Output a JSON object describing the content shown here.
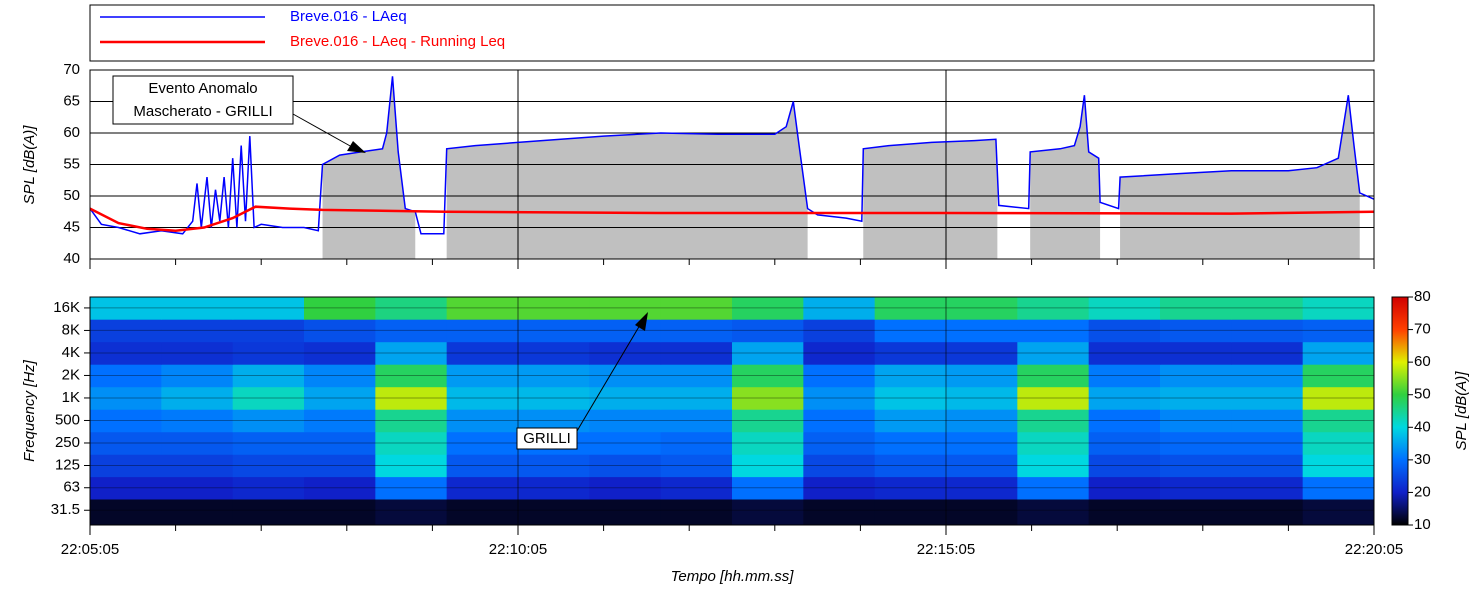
{
  "chart_data": [
    {
      "type": "line",
      "ylabel": "SPL [dB(A)]",
      "xlim": [
        0,
        900
      ],
      "xticks": [
        0,
        300,
        600,
        900
      ],
      "ylim": [
        40,
        70
      ],
      "yticks": [
        40,
        45,
        50,
        55,
        60,
        65,
        70
      ],
      "grid": true,
      "mask_color": "#c0c0c0",
      "masked_intervals": [
        [
          163,
          228
        ],
        [
          250,
          503
        ],
        [
          542,
          636
        ],
        [
          659,
          708
        ],
        [
          722,
          890
        ]
      ],
      "series": [
        {
          "name": "Breve.016 - LAeq",
          "color": "#0000ff",
          "x": [
            0,
            8,
            20,
            35,
            50,
            65,
            72,
            75,
            78,
            82,
            85,
            88,
            91,
            94,
            97,
            100,
            103,
            106,
            109,
            112,
            115,
            120,
            135,
            150,
            160,
            163,
            175,
            190,
            205,
            208,
            212,
            216,
            221,
            228,
            232,
            248,
            250,
            270,
            300,
            330,
            360,
            400,
            440,
            480,
            488,
            493,
            497,
            503,
            510,
            530,
            541,
            542,
            560,
            590,
            620,
            635,
            637,
            658,
            659,
            680,
            690,
            694,
            697,
            700,
            707,
            708,
            721,
            722,
            760,
            800,
            840,
            860,
            875,
            882,
            886,
            890,
            900
          ],
          "values": [
            48,
            45.5,
            45,
            44,
            44.5,
            44,
            46,
            52,
            45,
            53,
            45,
            51,
            46,
            53,
            45,
            56,
            45,
            58,
            46,
            59.5,
            45,
            45.5,
            45,
            45,
            44.5,
            55,
            56.5,
            57,
            57.5,
            60,
            69,
            57,
            48,
            47.5,
            44,
            44,
            57.5,
            58,
            58.5,
            59,
            59.5,
            60,
            59.8,
            59.8,
            61,
            65,
            58,
            48,
            47,
            46.5,
            46,
            57.5,
            58,
            58.5,
            58.8,
            59,
            48.5,
            48,
            57,
            57.5,
            58,
            61,
            66,
            57,
            56,
            49,
            48,
            53,
            53.5,
            54,
            54,
            54.5,
            56,
            66,
            58,
            50.5,
            49.5
          ]
        },
        {
          "name": "Breve.016 - LAeq - Running Leq",
          "color": "#ff0000",
          "x": [
            0,
            20,
            40,
            60,
            80,
            100,
            116,
            140,
            163,
            250,
            400,
            600,
            800,
            900
          ],
          "values": [
            48,
            45.7,
            44.8,
            44.5,
            45,
            46.5,
            48.3,
            48,
            47.8,
            47.5,
            47.3,
            47.3,
            47.2,
            47.5
          ]
        }
      ],
      "annotations": [
        {
          "text": [
            "Evento Anomalo",
            "Mascherato - GRILLI"
          ]
        }
      ]
    },
    {
      "type": "heatmap",
      "ylabel": "Frequency [Hz]",
      "xlabel": "Tempo [hh.mm.ss]",
      "clabel": "SPL [dB(A)]",
      "xlim": [
        0,
        900
      ],
      "xticks": [
        {
          "value": 0,
          "label": "22:05:05"
        },
        {
          "value": 300,
          "label": "22:10:05"
        },
        {
          "value": 600,
          "label": "22:15:05"
        },
        {
          "value": 900,
          "label": "22:20:05"
        }
      ],
      "xminorticks": [
        60,
        120,
        180,
        240,
        360,
        420,
        480,
        540,
        660,
        720,
        780,
        840
      ],
      "ylim": [
        20,
        22400
      ],
      "log_y": true,
      "yticks": [
        {
          "value": 31.5,
          "label": "31.5"
        },
        63,
        125,
        250,
        500,
        {
          "value": 1000,
          "label": "1K"
        },
        {
          "value": 2000,
          "label": "2K"
        },
        {
          "value": 4000,
          "label": "4K"
        },
        {
          "value": 8000,
          "label": "8K"
        },
        {
          "value": 16000,
          "label": "16K"
        }
      ],
      "x_edges": [
        0,
        50,
        100,
        150,
        200,
        250,
        300,
        350,
        400,
        450,
        500,
        550,
        600,
        650,
        700,
        750,
        800,
        850,
        900
      ],
      "z": [
        [
          12,
          12,
          12,
          12,
          13,
          12,
          12,
          12,
          12,
          13,
          12,
          12,
          12,
          13,
          12,
          12,
          12,
          13
        ],
        [
          20,
          20,
          21,
          20,
          30,
          21,
          21,
          20,
          21,
          30,
          20,
          21,
          21,
          30,
          20,
          21,
          21,
          30
        ],
        [
          24,
          24,
          25,
          25,
          40,
          27,
          27,
          26,
          27,
          40,
          25,
          27,
          27,
          40,
          25,
          26,
          26,
          40
        ],
        [
          27,
          27,
          28,
          28,
          42,
          30,
          30,
          30,
          29,
          42,
          28,
          30,
          30,
          42,
          28,
          29,
          29,
          42
        ],
        [
          30,
          31,
          33,
          31,
          45,
          33,
          33,
          32,
          32,
          45,
          30,
          34,
          33,
          45,
          30,
          32,
          32,
          45
        ],
        [
          33,
          36,
          42,
          35,
          58,
          37,
          37,
          36,
          36,
          55,
          33,
          38,
          37,
          58,
          35,
          36,
          36,
          58
        ],
        [
          30,
          32,
          36,
          32,
          48,
          34,
          34,
          33,
          33,
          48,
          30,
          35,
          34,
          48,
          31,
          33,
          33,
          48
        ],
        [
          22,
          22,
          23,
          22,
          35,
          23,
          23,
          22,
          22,
          35,
          21,
          23,
          23,
          35,
          22,
          22,
          22,
          35
        ],
        [
          24,
          24,
          24,
          26,
          28,
          28,
          28,
          28,
          28,
          27,
          24,
          30,
          30,
          30,
          26,
          27,
          27,
          28
        ],
        [
          38,
          38,
          38,
          50,
          46,
          52,
          52,
          52,
          52,
          48,
          36,
          48,
          48,
          45,
          42,
          45,
          45,
          42
        ]
      ],
      "clim": [
        10,
        80
      ],
      "cticks": [
        10,
        20,
        30,
        40,
        50,
        60,
        70,
        80
      ],
      "colormap": [
        "#000000",
        "#1020c8",
        "#0070ff",
        "#00d8e0",
        "#30d040",
        "#e0f000",
        "#ff4000",
        "#d00000"
      ],
      "annotations": [
        {
          "text": "GRILLI"
        }
      ]
    }
  ]
}
